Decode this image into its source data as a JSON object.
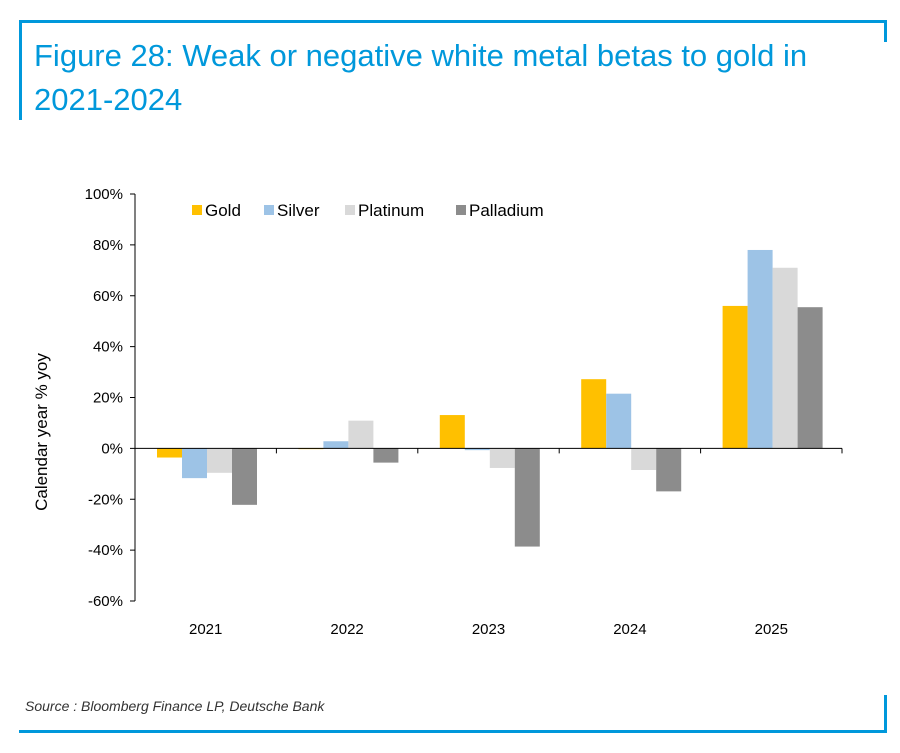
{
  "figure": {
    "title": "Figure 28: Weak or negative white metal betas to gold in 2021-2024",
    "source": "Source : Bloomberg Finance LP, Deutsche Bank"
  },
  "colors": {
    "accent": "#0098db",
    "gold": "#ffc000",
    "silver": "#9dc3e6",
    "platinum": "#d9d9d9",
    "palladium": "#8c8c8c"
  },
  "chart_data": {
    "type": "bar",
    "title": "",
    "xlabel": "",
    "ylabel": "Calendar year % yoy",
    "ylim": [
      -60,
      100
    ],
    "yticks": [
      -60,
      -40,
      -20,
      0,
      20,
      40,
      60,
      80,
      100
    ],
    "ytick_labels": [
      "-60%",
      "-40%",
      "-20%",
      "0%",
      "20%",
      "40%",
      "60%",
      "80%",
      "100%"
    ],
    "categories": [
      "2021",
      "2022",
      "2023",
      "2024",
      "2025"
    ],
    "legend_position": "top-left",
    "series": [
      {
        "name": "Gold",
        "color": "#ffc000",
        "values": [
          -3.6,
          -0.3,
          13.1,
          27.2,
          56.0
        ]
      },
      {
        "name": "Silver",
        "color": "#9dc3e6",
        "values": [
          -11.7,
          2.8,
          -0.7,
          21.5,
          78.0
        ]
      },
      {
        "name": "Platinum",
        "color": "#d9d9d9",
        "values": [
          -9.6,
          10.9,
          -7.7,
          -8.5,
          71.0
        ]
      },
      {
        "name": "Palladium",
        "color": "#8c8c8c",
        "values": [
          -22.2,
          -5.6,
          -38.6,
          -16.9,
          55.5
        ]
      }
    ]
  }
}
